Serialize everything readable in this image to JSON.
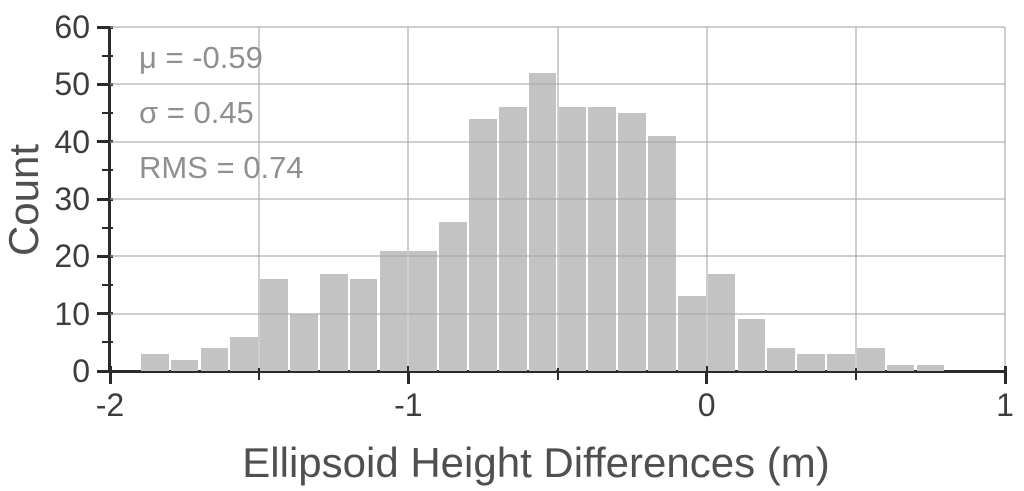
{
  "figure": {
    "background": "#ffffff",
    "bar_color": "#c3c3c3",
    "axis_color": "#2b2b2b",
    "gridline_color": "#cfcfcf",
    "tick_label_color": "#3d3d3d",
    "annotation_color": "#8f8f8f"
  },
  "annotation": {
    "mu_label": "μ = -0.59",
    "sigma_label": "σ = 0.45",
    "rms_label": "RMS = 0.74"
  },
  "chart_data": {
    "type": "bar",
    "subtype": "histogram",
    "title": "",
    "xlabel": "Ellipsoid Height Differences (m)",
    "ylabel": "Count",
    "xlim": [
      -2,
      1
    ],
    "ylim": [
      0,
      60
    ],
    "grid": true,
    "bin_width": 0.1,
    "bin_lefts": [
      -1.9,
      -1.8,
      -1.7,
      -1.6,
      -1.5,
      -1.4,
      -1.3,
      -1.2,
      -1.1,
      -1.0,
      -0.9,
      -0.8,
      -0.7,
      -0.6,
      -0.5,
      -0.4,
      -0.3,
      -0.2,
      -0.1,
      0.0,
      0.1,
      0.2,
      0.3,
      0.4,
      0.5,
      0.6,
      0.7
    ],
    "values": [
      3,
      2,
      4,
      6,
      16,
      10,
      17,
      16,
      21,
      21,
      26,
      44,
      46,
      52,
      46,
      46,
      45,
      41,
      13,
      17,
      9,
      4,
      3,
      3,
      4,
      1,
      1
    ],
    "stats": {
      "mu": -0.59,
      "sigma": 0.45,
      "rms": 0.74
    },
    "x_major_ticks": [
      -2,
      -1,
      0,
      1
    ],
    "x_major_tick_labels": [
      "-2",
      "-1",
      "0",
      "1"
    ],
    "x_minor_ticks": [
      -1.5,
      -0.5,
      0.5
    ],
    "y_major_ticks": [
      0,
      10,
      20,
      30,
      40,
      50,
      60
    ],
    "y_major_tick_labels": [
      "0",
      "10",
      "20",
      "30",
      "40",
      "50",
      "60"
    ],
    "y_minor_ticks": [
      5,
      15,
      25,
      35,
      45,
      55
    ],
    "x_gridlines": [
      -1.5,
      -1.0,
      -0.5,
      0.0,
      0.5,
      1.0
    ],
    "y_gridlines": [
      10,
      20,
      30,
      40,
      50,
      60
    ]
  }
}
